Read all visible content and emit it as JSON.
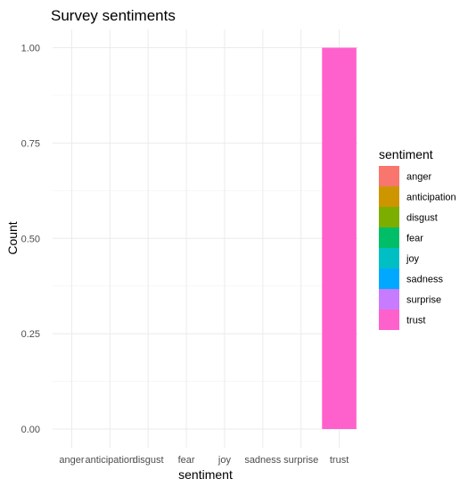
{
  "chart_data": {
    "type": "bar",
    "title": "Survey sentiments",
    "xlabel": "sentiment",
    "ylabel": "Count",
    "categories": [
      "anger",
      "anticipation",
      "disgust",
      "fear",
      "joy",
      "sadness",
      "surprise",
      "trust"
    ],
    "values": [
      0,
      0,
      0,
      0,
      0,
      0,
      0,
      1
    ],
    "colors": [
      "#F8766D",
      "#CD9600",
      "#7CAE00",
      "#00BE67",
      "#00BFC4",
      "#00A9FF",
      "#C77CFF",
      "#FF61CC"
    ],
    "ylim": [
      0,
      1
    ],
    "yticks": [
      0,
      0.25,
      0.5,
      0.75,
      1
    ],
    "ytick_labels": [
      "0.00",
      "0.25",
      "0.50",
      "0.75",
      "1.00"
    ],
    "grid": true,
    "legend": {
      "title": "sentiment",
      "position": "right",
      "entries": [
        "anger",
        "anticipation",
        "disgust",
        "fear",
        "joy",
        "sadness",
        "surprise",
        "trust"
      ]
    }
  }
}
